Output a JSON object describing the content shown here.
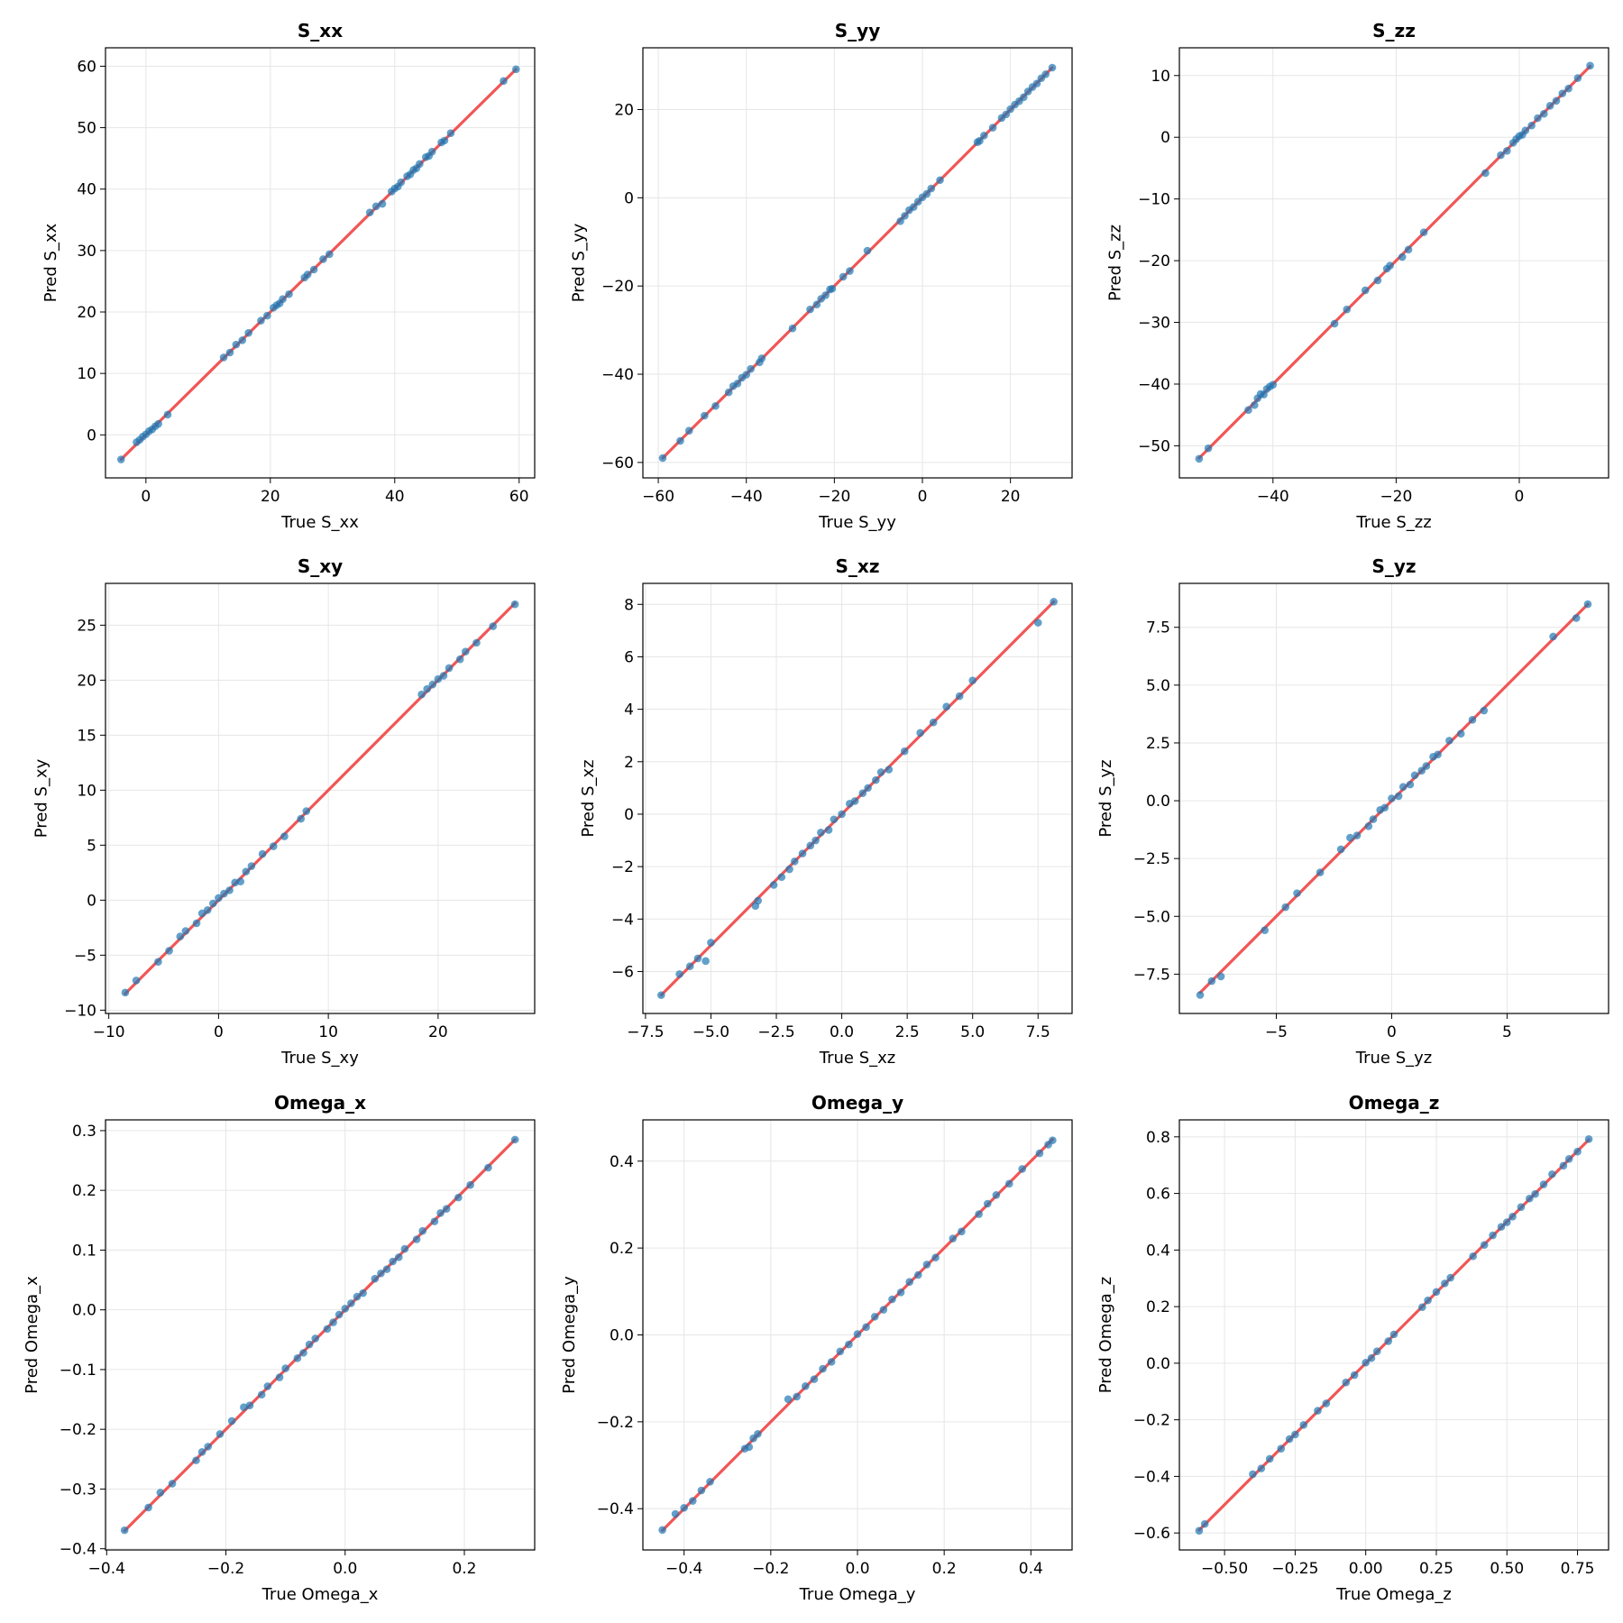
{
  "figure": {
    "type": "scatter-grid"
  },
  "colors": {
    "points": "#1f77b4",
    "identity_line": "#ef4444",
    "grid": "#e6e6e6",
    "axes": "#000000"
  },
  "chart_data": [
    {
      "type": "scatter",
      "title": "S_xx",
      "xlabel": "True S_xx",
      "ylabel": "Pred S_xx",
      "xlim": [
        -6.5,
        62.5
      ],
      "ylim": [
        -7,
        63
      ],
      "xticks": [
        0,
        20,
        40,
        60
      ],
      "yticks": [
        0,
        10,
        20,
        30,
        40,
        50,
        60
      ],
      "xtick_labels": [
        "0",
        "20",
        "40",
        "60"
      ],
      "ytick_labels": [
        "0",
        "10",
        "20",
        "30",
        "40",
        "50",
        "60"
      ],
      "identity_line": [
        -4,
        59.5
      ],
      "x": [
        -4,
        -1.5,
        -1,
        -0.5,
        0,
        0.5,
        1,
        1.5,
        2,
        3.5,
        12.5,
        13.5,
        14.5,
        15.5,
        16.5,
        18.5,
        19.5,
        20.5,
        21,
        21.5,
        22,
        23,
        25.5,
        26,
        27,
        28.5,
        29.5,
        36,
        37,
        38,
        39.5,
        40,
        40.5,
        41,
        42,
        42.5,
        43,
        43.5,
        44,
        45,
        45.5,
        46,
        47.5,
        48,
        49,
        57.5,
        59.5
      ],
      "y": [
        -4,
        -1.2,
        -0.8,
        -0.3,
        0.1,
        0.6,
        0.9,
        1.4,
        1.8,
        3.3,
        12.6,
        13.4,
        14.7,
        15.4,
        16.6,
        18.6,
        19.4,
        20.7,
        21.1,
        21.4,
        22.1,
        22.9,
        25.6,
        26.1,
        26.9,
        28.6,
        29.4,
        36.2,
        37.2,
        37.6,
        39.6,
        40.1,
        40.4,
        41.1,
        42.1,
        42.4,
        43.1,
        43.4,
        44.1,
        45.2,
        45.4,
        46.1,
        47.6,
        47.9,
        49.1,
        57.6,
        59.5
      ]
    },
    {
      "type": "scatter",
      "title": "S_yy",
      "xlabel": "True S_yy",
      "ylabel": "Pred S_yy",
      "xlim": [
        -63.5,
        34
      ],
      "ylim": [
        -63.5,
        34
      ],
      "xticks": [
        -60,
        -40,
        -20,
        0,
        20
      ],
      "yticks": [
        -60,
        -40,
        -20,
        0,
        20
      ],
      "xtick_labels": [
        "−60",
        "−40",
        "−20",
        "0",
        "20"
      ],
      "ytick_labels": [
        "−60",
        "−40",
        "−20",
        "0",
        "20"
      ],
      "identity_line": [
        -59,
        29.5
      ],
      "x": [
        -59,
        -55,
        -53,
        -49.5,
        -47,
        -44,
        -43,
        -42,
        -41,
        -40,
        -39,
        -37,
        -36.5,
        -29.5,
        -25.5,
        -24,
        -23,
        -22,
        -21,
        -20.5,
        -18,
        -16.5,
        -12.5,
        -5,
        -4,
        -3,
        -2,
        -1,
        0,
        1,
        2,
        4,
        12.5,
        13,
        14,
        16,
        18,
        19,
        20,
        21,
        22,
        23,
        24,
        25,
        26,
        27,
        28,
        29.5
      ],
      "y": [
        -59,
        -55.1,
        -52.8,
        -49.4,
        -47.2,
        -44.1,
        -42.7,
        -42.1,
        -40.8,
        -40.1,
        -38.8,
        -37.3,
        -36.4,
        -29.6,
        -25.3,
        -24.2,
        -22.9,
        -22.1,
        -20.8,
        -20.6,
        -17.9,
        -16.6,
        -12,
        -5.3,
        -4.1,
        -2.8,
        -2.1,
        -0.9,
        0.1,
        0.9,
        2.1,
        4,
        12.6,
        12.9,
        14.1,
        15.9,
        18.1,
        18.9,
        20.1,
        21.1,
        21.9,
        22.8,
        24.1,
        25.1,
        25.9,
        27.1,
        28,
        29.5
      ]
    },
    {
      "type": "scatter",
      "title": "S_zz",
      "xlabel": "True S_zz",
      "ylabel": "Pred S_zz",
      "xlim": [
        -55.2,
        14.5
      ],
      "ylim": [
        -55.2,
        14.5
      ],
      "xticks": [
        -40,
        -20,
        0
      ],
      "yticks": [
        -50,
        -40,
        -30,
        -20,
        -10,
        0,
        10
      ],
      "xtick_labels": [
        "−40",
        "−20",
        "0"
      ],
      "ytick_labels": [
        "−50",
        "−40",
        "−30",
        "−20",
        "−10",
        "0",
        "10"
      ],
      "identity_line": [
        -52,
        11.5
      ],
      "x": [
        -52,
        -50.5,
        -44,
        -43,
        -42.5,
        -42,
        -41.5,
        -41,
        -40.5,
        -40,
        -30,
        -28,
        -25,
        -23,
        -21.5,
        -21,
        -19,
        -18,
        -15.5,
        -5.5,
        -3,
        -2,
        -1,
        -0.5,
        0,
        0.5,
        1,
        2,
        3,
        4,
        5,
        6,
        7,
        8,
        9.5,
        11.5
      ],
      "y": [
        -52.1,
        -50.4,
        -44.2,
        -43.4,
        -42.3,
        -41.6,
        -41.7,
        -40.8,
        -40.4,
        -40.1,
        -30.2,
        -27.9,
        -24.8,
        -23.2,
        -21.3,
        -20.8,
        -19.4,
        -18.2,
        -15.4,
        -5.8,
        -2.9,
        -2.2,
        -0.9,
        -0.3,
        0.2,
        0.4,
        1.1,
        1.9,
        3.1,
        3.8,
        5.1,
        5.9,
        7.1,
        7.9,
        9.6,
        11.6
      ]
    },
    {
      "type": "scatter",
      "title": "S_xy",
      "xlabel": "True S_xy",
      "ylabel": "Pred S_xy",
      "xlim": [
        -10.3,
        28.8
      ],
      "ylim": [
        -10.3,
        28.8
      ],
      "xticks": [
        -10,
        0,
        10,
        20
      ],
      "yticks": [
        -10,
        -5,
        0,
        5,
        10,
        15,
        20,
        25
      ],
      "xtick_labels": [
        "−10",
        "0",
        "10",
        "20"
      ],
      "ytick_labels": [
        "−10",
        "−5",
        "0",
        "5",
        "10",
        "15",
        "20",
        "25"
      ],
      "identity_line": [
        -8.5,
        27
      ],
      "x": [
        -8.5,
        -7.5,
        -5.5,
        -4.5,
        -3.5,
        -3,
        -2,
        -1.5,
        -1,
        -0.5,
        0,
        0.5,
        1,
        1.5,
        2,
        2.5,
        3,
        4,
        5,
        6,
        7.5,
        8,
        18.5,
        19,
        19.5,
        20,
        20.5,
        21,
        22,
        22.5,
        23.5,
        25,
        27
      ],
      "y": [
        -8.4,
        -7.3,
        -5.6,
        -4.6,
        -3.3,
        -2.8,
        -2.1,
        -1.2,
        -0.9,
        -0.3,
        0.2,
        0.6,
        0.9,
        1.6,
        1.7,
        2.6,
        3.1,
        4.2,
        4.9,
        5.8,
        7.4,
        8.1,
        18.7,
        19.2,
        19.6,
        20.1,
        20.4,
        21.1,
        21.9,
        22.6,
        23.4,
        24.9,
        26.9
      ]
    },
    {
      "type": "scatter",
      "title": "S_xz",
      "xlabel": "True S_xz",
      "ylabel": "Pred S_xz",
      "xlim": [
        -7.6,
        8.8
      ],
      "ylim": [
        -7.6,
        8.8
      ],
      "xticks": [
        -7.5,
        -5,
        -2.5,
        0,
        2.5,
        5,
        7.5
      ],
      "yticks": [
        -6,
        -4,
        -2,
        0,
        2,
        4,
        6,
        8
      ],
      "xtick_labels": [
        "−7.5",
        "−5.0",
        "−2.5",
        "0.0",
        "2.5",
        "5.0",
        "7.5"
      ],
      "ytick_labels": [
        "−6",
        "−4",
        "−2",
        "0",
        "2",
        "4",
        "6",
        "8"
      ],
      "identity_line": [
        -6.9,
        8.1
      ],
      "x": [
        -6.9,
        -6.2,
        -5.8,
        -5.5,
        -5.2,
        -5,
        -3.3,
        -3.2,
        -2.6,
        -2.3,
        -2,
        -1.8,
        -1.5,
        -1.2,
        -1,
        -0.8,
        -0.5,
        -0.3,
        0,
        0.3,
        0.5,
        0.8,
        1,
        1.3,
        1.5,
        1.8,
        2.4,
        3,
        3.5,
        4,
        4.5,
        5,
        7.5,
        8.1
      ],
      "y": [
        -6.9,
        -6.1,
        -5.8,
        -5.5,
        -5.6,
        -4.9,
        -3.5,
        -3.3,
        -2.7,
        -2.4,
        -2.1,
        -1.8,
        -1.5,
        -1.2,
        -1,
        -0.7,
        -0.6,
        -0.2,
        0,
        0.4,
        0.5,
        0.8,
        1,
        1.3,
        1.6,
        1.7,
        2.4,
        3.1,
        3.5,
        4.1,
        4.5,
        5.1,
        7.3,
        8.1
      ]
    },
    {
      "type": "scatter",
      "title": "S_yz",
      "xlabel": "True S_yz",
      "ylabel": "Pred S_yz",
      "xlim": [
        -9.2,
        9.4
      ],
      "ylim": [
        -9.2,
        9.4
      ],
      "xticks": [
        -5,
        0,
        5
      ],
      "yticks": [
        -7.5,
        -5,
        -2.5,
        0,
        2.5,
        5,
        7.5
      ],
      "xtick_labels": [
        "−5",
        "0",
        "5"
      ],
      "ytick_labels": [
        "−7.5",
        "−5.0",
        "−2.5",
        "0.0",
        "2.5",
        "5.0",
        "7.5"
      ],
      "identity_line": [
        -8.3,
        8.5
      ],
      "x": [
        -8.3,
        -7.8,
        -7.4,
        -5.5,
        -4.6,
        -4.1,
        -3.1,
        -2.2,
        -1.8,
        -1.5,
        -1,
        -0.8,
        -0.5,
        -0.3,
        0,
        0.3,
        0.5,
        0.8,
        1,
        1.3,
        1.5,
        1.8,
        2,
        2.5,
        3,
        3.5,
        4,
        7,
        8,
        8.5
      ],
      "y": [
        -8.4,
        -7.8,
        -7.6,
        -5.6,
        -4.6,
        -4,
        -3.1,
        -2.1,
        -1.6,
        -1.5,
        -1.1,
        -0.8,
        -0.4,
        -0.3,
        0.1,
        0.2,
        0.6,
        0.7,
        1.1,
        1.3,
        1.5,
        1.9,
        2,
        2.6,
        2.9,
        3.5,
        3.9,
        7.1,
        7.9,
        8.5
      ]
    },
    {
      "type": "scatter",
      "title": "Omega_x",
      "xlabel": "True Omega_x",
      "ylabel": "Pred Omega_x",
      "xlim": [
        -0.402,
        0.318
      ],
      "ylim": [
        -0.402,
        0.318
      ],
      "xticks": [
        -0.4,
        -0.2,
        0,
        0.2
      ],
      "yticks": [
        -0.4,
        -0.3,
        -0.2,
        -0.1,
        0,
        0.1,
        0.2,
        0.3
      ],
      "xtick_labels": [
        "−0.4",
        "−0.2",
        "0.0",
        "0.2"
      ],
      "ytick_labels": [
        "−0.4",
        "−0.3",
        "−0.2",
        "−0.1",
        "0.0",
        "0.1",
        "0.2",
        "0.3"
      ],
      "identity_line": [
        -0.37,
        0.285
      ],
      "x": [
        -0.37,
        -0.33,
        -0.31,
        -0.29,
        -0.25,
        -0.24,
        -0.23,
        -0.21,
        -0.19,
        -0.17,
        -0.16,
        -0.14,
        -0.13,
        -0.11,
        -0.1,
        -0.08,
        -0.07,
        -0.06,
        -0.05,
        -0.03,
        -0.02,
        -0.01,
        0,
        0.01,
        0.02,
        0.03,
        0.05,
        0.06,
        0.07,
        0.08,
        0.09,
        0.1,
        0.12,
        0.13,
        0.15,
        0.16,
        0.17,
        0.19,
        0.21,
        0.24,
        0.285
      ],
      "y": [
        -0.369,
        -0.331,
        -0.306,
        -0.291,
        -0.252,
        -0.238,
        -0.229,
        -0.208,
        -0.186,
        -0.163,
        -0.16,
        -0.142,
        -0.128,
        -0.113,
        -0.098,
        -0.081,
        -0.072,
        -0.058,
        -0.048,
        -0.032,
        -0.021,
        -0.008,
        0.002,
        0.011,
        0.022,
        0.028,
        0.052,
        0.061,
        0.068,
        0.081,
        0.088,
        0.102,
        0.118,
        0.132,
        0.148,
        0.162,
        0.169,
        0.188,
        0.209,
        0.238,
        0.285
      ]
    },
    {
      "type": "scatter",
      "title": "Omega_y",
      "xlabel": "True Omega_y",
      "ylabel": "Pred Omega_y",
      "xlim": [
        -0.495,
        0.495
      ],
      "ylim": [
        -0.495,
        0.495
      ],
      "xticks": [
        -0.4,
        -0.2,
        0,
        0.2,
        0.4
      ],
      "yticks": [
        -0.4,
        -0.2,
        0,
        0.2,
        0.4
      ],
      "xtick_labels": [
        "−0.4",
        "−0.2",
        "0.0",
        "0.2",
        "0.4"
      ],
      "ytick_labels": [
        "−0.4",
        "−0.2",
        "0.0",
        "0.2",
        "0.4"
      ],
      "identity_line": [
        -0.45,
        0.45
      ],
      "x": [
        -0.45,
        -0.42,
        -0.4,
        -0.38,
        -0.36,
        -0.34,
        -0.26,
        -0.25,
        -0.24,
        -0.23,
        -0.16,
        -0.14,
        -0.12,
        -0.1,
        -0.08,
        -0.06,
        -0.04,
        -0.02,
        0,
        0.02,
        0.04,
        0.06,
        0.08,
        0.1,
        0.12,
        0.14,
        0.16,
        0.18,
        0.22,
        0.24,
        0.28,
        0.3,
        0.32,
        0.35,
        0.38,
        0.42,
        0.44,
        0.45
      ],
      "y": [
        -0.449,
        -0.412,
        -0.398,
        -0.382,
        -0.358,
        -0.338,
        -0.262,
        -0.258,
        -0.238,
        -0.228,
        -0.148,
        -0.142,
        -0.118,
        -0.102,
        -0.078,
        -0.062,
        -0.038,
        -0.022,
        0.002,
        0.018,
        0.042,
        0.058,
        0.082,
        0.098,
        0.122,
        0.138,
        0.162,
        0.178,
        0.222,
        0.238,
        0.278,
        0.302,
        0.322,
        0.348,
        0.382,
        0.418,
        0.438,
        0.448
      ]
    },
    {
      "type": "scatter",
      "title": "Omega_z",
      "xlabel": "True Omega_z",
      "ylabel": "Pred Omega_z",
      "xlim": [
        -0.66,
        0.86
      ],
      "ylim": [
        -0.66,
        0.86
      ],
      "xticks": [
        -0.5,
        -0.25,
        0,
        0.25,
        0.5,
        0.75
      ],
      "yticks": [
        -0.6,
        -0.4,
        -0.2,
        0,
        0.2,
        0.4,
        0.6,
        0.8
      ],
      "xtick_labels": [
        "−0.50",
        "−0.25",
        "0.00",
        "0.25",
        "0.50",
        "0.75"
      ],
      "ytick_labels": [
        "−0.6",
        "−0.4",
        "−0.2",
        "0.0",
        "0.2",
        "0.4",
        "0.6",
        "0.8"
      ],
      "identity_line": [
        -0.59,
        0.79
      ],
      "x": [
        -0.59,
        -0.57,
        -0.4,
        -0.37,
        -0.34,
        -0.3,
        -0.27,
        -0.25,
        -0.22,
        -0.17,
        -0.14,
        -0.07,
        -0.04,
        0,
        0.02,
        0.04,
        0.08,
        0.1,
        0.2,
        0.22,
        0.25,
        0.28,
        0.3,
        0.38,
        0.42,
        0.45,
        0.48,
        0.5,
        0.52,
        0.55,
        0.58,
        0.6,
        0.63,
        0.66,
        0.7,
        0.72,
        0.75,
        0.79
      ],
      "y": [
        -0.592,
        -0.568,
        -0.392,
        -0.372,
        -0.338,
        -0.302,
        -0.268,
        -0.252,
        -0.218,
        -0.168,
        -0.142,
        -0.068,
        -0.042,
        0.002,
        0.018,
        0.042,
        0.078,
        0.102,
        0.198,
        0.222,
        0.252,
        0.282,
        0.302,
        0.378,
        0.418,
        0.452,
        0.482,
        0.498,
        0.518,
        0.552,
        0.582,
        0.598,
        0.632,
        0.668,
        0.698,
        0.722,
        0.748,
        0.792
      ]
    }
  ]
}
